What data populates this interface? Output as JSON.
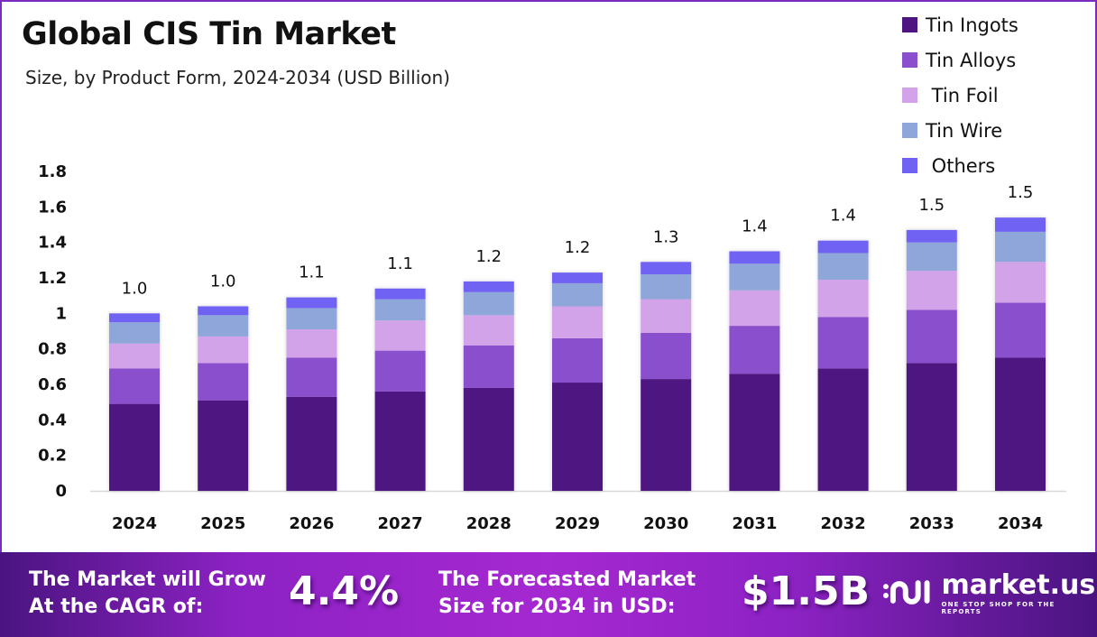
{
  "header": {
    "title": "Global CIS Tin Market",
    "subtitle": "Size, by Product Form, 2024-2034 (USD Billion)"
  },
  "legend": [
    {
      "label": "Tin Ingots",
      "color": "#4e1580"
    },
    {
      "label": "Tin Alloys",
      "color": "#8a4fcc"
    },
    {
      "label": " Tin Foil",
      "color": "#d3a3ea"
    },
    {
      "label": "Tin Wire",
      "color": "#8ea6da"
    },
    {
      "label": " Others",
      "color": "#6f62f2"
    }
  ],
  "chart_data": {
    "type": "bar",
    "stacked": true,
    "title": "Global CIS Tin Market",
    "subtitle": "Size, by Product Form, 2024-2034 (USD Billion)",
    "xlabel": "",
    "ylabel": "",
    "ylim": [
      0,
      1.8
    ],
    "yticks": [
      0,
      0.2,
      0.4,
      0.6,
      0.8,
      1,
      1.2,
      1.4,
      1.6,
      1.8
    ],
    "ytick_labels": [
      "0",
      "0.2",
      "0.4",
      "0.6",
      "0.8",
      "1",
      "1.2",
      "1.4",
      "1.6",
      "1.8"
    ],
    "categories": [
      "2024",
      "2025",
      "2026",
      "2027",
      "2028",
      "2029",
      "2030",
      "2031",
      "2032",
      "2033",
      "2034"
    ],
    "series": [
      {
        "name": "Tin Ingots",
        "color": "#4e1580",
        "values": [
          0.49,
          0.51,
          0.53,
          0.56,
          0.58,
          0.61,
          0.63,
          0.66,
          0.69,
          0.72,
          0.75
        ]
      },
      {
        "name": "Tin Alloys",
        "color": "#8a4fcc",
        "values": [
          0.2,
          0.21,
          0.22,
          0.23,
          0.24,
          0.25,
          0.26,
          0.27,
          0.29,
          0.3,
          0.31
        ]
      },
      {
        "name": "Tin Foil",
        "color": "#d3a3ea",
        "values": [
          0.14,
          0.15,
          0.16,
          0.17,
          0.17,
          0.18,
          0.19,
          0.2,
          0.21,
          0.22,
          0.23
        ]
      },
      {
        "name": "Tin Wire",
        "color": "#8ea6da",
        "values": [
          0.12,
          0.12,
          0.12,
          0.12,
          0.13,
          0.13,
          0.14,
          0.15,
          0.15,
          0.16,
          0.17
        ]
      },
      {
        "name": "Others",
        "color": "#6f62f2",
        "values": [
          0.05,
          0.05,
          0.06,
          0.06,
          0.06,
          0.06,
          0.07,
          0.07,
          0.07,
          0.07,
          0.08
        ]
      }
    ],
    "data_labels": [
      "1.0",
      "1.0",
      "1.1",
      "1.1",
      "1.2",
      "1.2",
      "1.3",
      "1.4",
      "1.4",
      "1.5",
      "1.5"
    ],
    "legend_position": "top-right",
    "grid": false
  },
  "banner": {
    "cagr_text_line1": "The Market will Grow",
    "cagr_text_line2": "At the CAGR of:",
    "cagr_value": "4.4%",
    "forecast_text_line1": "The Forecasted Market",
    "forecast_text_line2": "Size for 2034 in USD:",
    "forecast_value": "$1.5B",
    "logo_name": "market.us",
    "logo_tagline": "ONE STOP SHOP FOR THE REPORTS",
    "logo_icon": "market-us-logo-icon"
  }
}
